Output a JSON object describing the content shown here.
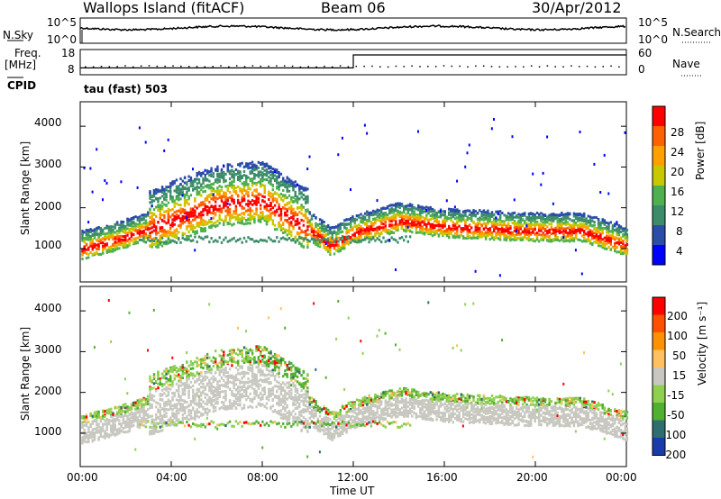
{
  "header": {
    "station": "Wallops Island (fitACF)",
    "beam": "Beam 06",
    "date": "30/Apr/2012"
  },
  "nsky_panel": {
    "left_label": "N.Sky",
    "left_ticks": [
      "10^5",
      "10^0"
    ],
    "right_ticks": [
      "10^5",
      "10^0"
    ],
    "right_label": "N.Search"
  },
  "freq_panel": {
    "left_label_line1": "Freq.",
    "left_label_line2": "[MHz]",
    "left_ticks": [
      "18",
      "8"
    ],
    "right_ticks": [
      "60",
      "0"
    ],
    "right_label": "Nave",
    "cpid_label": "CPID"
  },
  "cpid_text": "tau (fast) 503",
  "power_panel": {
    "ylabel": "Slant Range [km]",
    "yticks": [
      "4000",
      "3000",
      "2000",
      "1000"
    ],
    "colorbar_label": "Power [dB]",
    "colorbar_ticks": [
      "28",
      "24",
      "20",
      "16",
      "12",
      "8",
      "4"
    ],
    "colors": [
      "#0000ff",
      "#2b4da8",
      "#3c8c6a",
      "#4fb04f",
      "#c8c800",
      "#ffa000",
      "#ff6000",
      "#ff0000"
    ]
  },
  "velocity_panel": {
    "ylabel": "Slant Range [km]",
    "yticks": [
      "4000",
      "3000",
      "2000",
      "1000"
    ],
    "colorbar_label": "Velocity [m s⁻¹]",
    "colorbar_ticks": [
      "200",
      "100",
      "50",
      "15",
      "-15",
      "-50",
      "-100",
      "-200"
    ],
    "colors": [
      "#1a3caa",
      "#2e6e6e",
      "#50b030",
      "#90d050",
      "#c8c8c0",
      "#ffc060",
      "#ff9000",
      "#ff5000",
      "#ff0000"
    ]
  },
  "xaxis": {
    "ticks": [
      "00:00",
      "04:00",
      "08:00",
      "12:00",
      "16:00",
      "20:00",
      "00:00"
    ],
    "label": "Time UT"
  },
  "chart_data": {
    "type": "heatmap",
    "title": "Wallops Island (fitACF)",
    "subtitle": "Beam 06",
    "date": "30/Apr/2012",
    "xlabel": "Time UT",
    "ylabel": "Slant Range [km]",
    "xlim_hours": [
      0,
      24
    ],
    "ylim_km": [
      180,
      4600
    ],
    "grid": false,
    "frequency_steps_mhz": [
      {
        "start_hour": 0,
        "end_hour": 12,
        "freq": 10
      },
      {
        "start_hour": 12,
        "end_hour": 24,
        "freq": 18
      }
    ],
    "band_range_km_by_hour": [
      {
        "hour": 0,
        "range": 1000
      },
      {
        "hour": 2,
        "range": 1300
      },
      {
        "hour": 4,
        "range": 1700
      },
      {
        "hour": 6,
        "range": 2100
      },
      {
        "hour": 8,
        "range": 2200
      },
      {
        "hour": 10,
        "range": 1500
      },
      {
        "hour": 11,
        "range": 1100
      },
      {
        "hour": 12,
        "range": 1400
      },
      {
        "hour": 14,
        "range": 1700
      },
      {
        "hour": 16,
        "range": 1550
      },
      {
        "hour": 18,
        "range": 1500
      },
      {
        "hour": 20,
        "range": 1450
      },
      {
        "hour": 22,
        "range": 1450
      },
      {
        "hour": 24,
        "range": 1100
      }
    ],
    "power_colorbar_db": [
      4,
      8,
      12,
      16,
      20,
      24,
      28
    ],
    "velocity_colorbar_ms": [
      -200,
      -100,
      -50,
      -15,
      15,
      50,
      100,
      200
    ]
  }
}
